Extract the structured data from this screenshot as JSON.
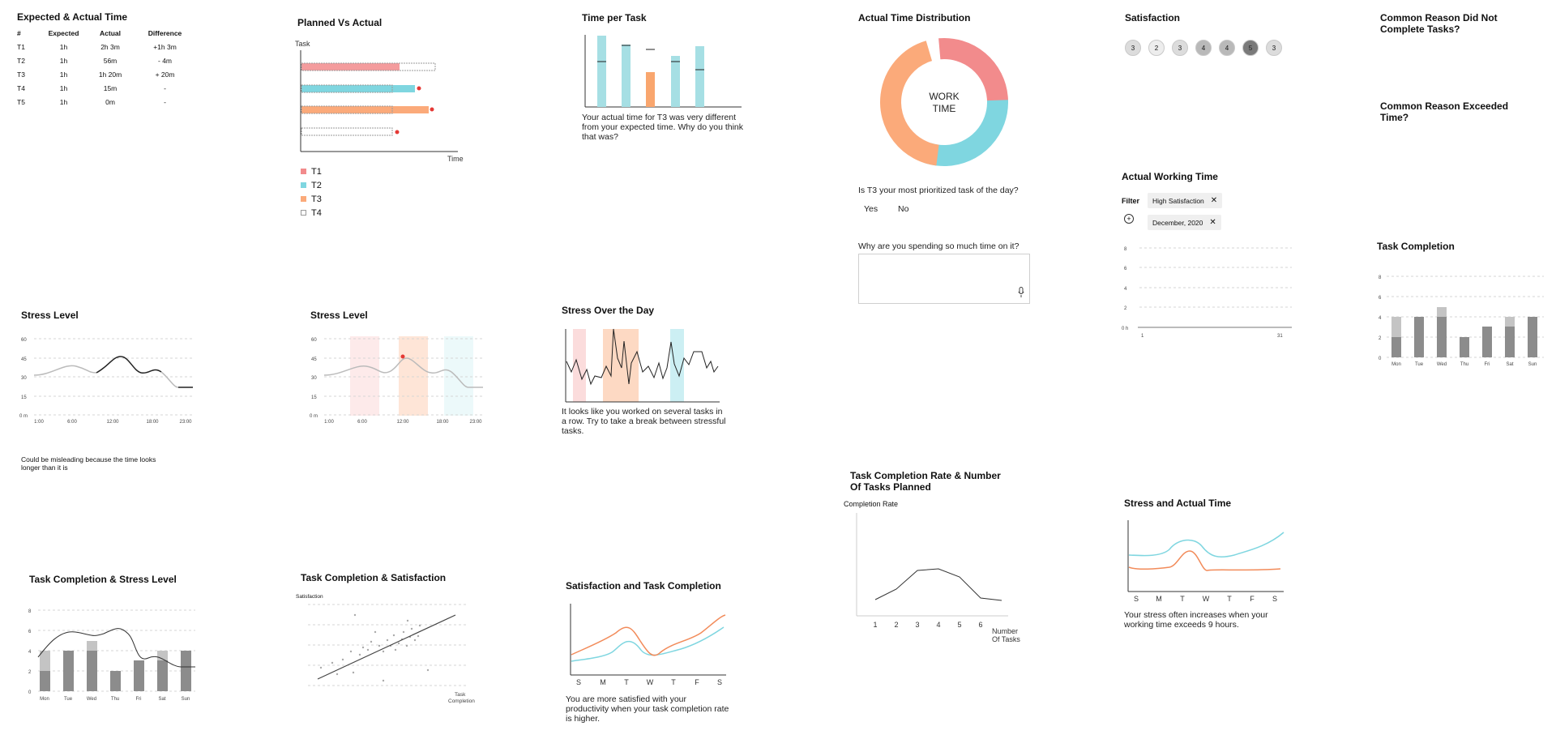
{
  "colors": {
    "t1": "#f28b8c",
    "t2": "#7fd6e0",
    "t3": "#fbaa7a",
    "gray": "#8c8c8c",
    "light_gray": "#c4c4c4",
    "red_dot": "#e53935"
  },
  "expected_actual": {
    "title": "Expected & Actual Time",
    "headers": [
      "#",
      "Expected",
      "Actual",
      "Difference"
    ],
    "rows": [
      [
        "T1",
        "1h",
        "2h 3m",
        "+1h 3m"
      ],
      [
        "T2",
        "1h",
        "56m",
        "- 4m"
      ],
      [
        "T3",
        "1h",
        "1h 20m",
        "+ 20m"
      ],
      [
        "T4",
        "1h",
        "15m",
        "-"
      ],
      [
        "T5",
        "1h",
        "0m",
        "-"
      ]
    ]
  },
  "planned_actual": {
    "title": "Planned Vs Actual",
    "y_label": "Task",
    "x_label": "Time",
    "legend": [
      "T1",
      "T2",
      "T3",
      "T4"
    ]
  },
  "time_per_task": {
    "title": "Time per Task",
    "note": "Your actual time for T3 was very different from your expected time. Why do you think that was?"
  },
  "distribution": {
    "title": "Actual Time Distribution",
    "center_line1": "WORK",
    "center_line2": "TIME",
    "question": "Is T3 your most prioritized task of the day?",
    "yes": "Yes",
    "no": "No",
    "why": "Why are you spending so much time on it?",
    "mic_icon": "microphone-icon"
  },
  "satisfaction": {
    "title": "Satisfaction",
    "values": [
      "3",
      "2",
      "3",
      "4",
      "4",
      "5",
      "3"
    ]
  },
  "reasons": {
    "not_complete": "Common Reason Did Not Complete Tasks?",
    "exceeded": "Common Reason Exceeded Time?"
  },
  "working_time": {
    "title": "Actual Working Time",
    "filter_label": "Filter",
    "chips": [
      "High Satisfaction",
      "December, 2020"
    ],
    "y_ticks": [
      "8",
      "6",
      "4",
      "2",
      "0 h"
    ],
    "x_start": "1",
    "x_end": "31"
  },
  "task_completion": {
    "title": "Task Completion",
    "y_ticks": [
      "8",
      "6",
      "4",
      "2",
      "0"
    ],
    "days": [
      "Mon",
      "Tue",
      "Wed",
      "Thu",
      "Fri",
      "Sat",
      "Sun"
    ]
  },
  "stress1": {
    "title": "Stress Level",
    "y_ticks": [
      "60",
      "45",
      "30",
      "15",
      "0 m"
    ],
    "x_ticks": [
      "1:00",
      "6:00",
      "12:00",
      "18:00",
      "23:00"
    ],
    "note": "Could be misleading because the time looks longer than it is"
  },
  "stress2": {
    "title": "Stress Level",
    "y_ticks": [
      "60",
      "45",
      "30",
      "15",
      "0 m"
    ],
    "x_ticks": [
      "1:00",
      "6:00",
      "12:00",
      "18:00",
      "23:00"
    ]
  },
  "stress_day": {
    "title": "Stress Over the Day",
    "note": "It looks like you worked on several tasks in a row. Try to take a break between stressful tasks."
  },
  "completion_rate": {
    "title": "Task Completion Rate & Number Of Tasks Planned",
    "y_label": "Completion Rate",
    "x_ticks": [
      "1",
      "2",
      "3",
      "4",
      "5",
      "6"
    ],
    "x_label_1": "Number",
    "x_label_2": "Of Tasks"
  },
  "stress_actual": {
    "title": "Stress and Actual Time",
    "days": [
      "S",
      "M",
      "T",
      "W",
      "T",
      "F",
      "S"
    ],
    "note": "Your stress often increases when your working time exceeds 9 hours."
  },
  "tc_stress": {
    "title": "Task Completion & Stress Level",
    "y_ticks": [
      "8",
      "6",
      "4",
      "2",
      "0"
    ],
    "days": [
      "Mon",
      "Tue",
      "Wed",
      "Thu",
      "Fri",
      "Sat",
      "Sun"
    ]
  },
  "tc_sat": {
    "title": "Task Completion & Satisfaction",
    "y_label": "Satisfaction",
    "x_label_1": "Task",
    "x_label_2": "Completion"
  },
  "sat_tc": {
    "title": "Satisfaction and Task Completion",
    "days": [
      "S",
      "M",
      "T",
      "W",
      "T",
      "F",
      "S"
    ],
    "note": "You are more satisfied with your productivity when your task completion rate is higher."
  }
}
